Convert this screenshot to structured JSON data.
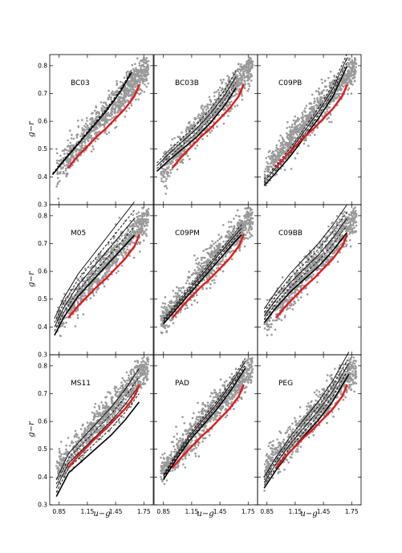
{
  "figure": {
    "xlabel": "u−g",
    "ylabel": "g−r"
  },
  "chart_data": {
    "type": "scatter",
    "grid": "3x3",
    "xlim": [
      0.75,
      1.85
    ],
    "ylim": [
      0.3,
      0.84
    ],
    "x_ticks": [
      0.85,
      1.15,
      1.45,
      1.75
    ],
    "x_tick_labels": [
      "0.85",
      "1.15",
      "1.45",
      "1.75"
    ],
    "y_ticks": [
      0.3,
      0.4,
      0.5,
      0.6,
      0.7,
      0.8
    ],
    "y_tick_labels": [
      "0.3",
      "0.4",
      "0.5",
      "0.6",
      "0.7",
      "0.8"
    ],
    "grid_lines": false,
    "colors": {
      "points": "#999999",
      "observed_track": "#e31a1c",
      "models": "#000000"
    },
    "observed_track": {
      "x": [
        0.95,
        1.05,
        1.15,
        1.25,
        1.35,
        1.45,
        1.55,
        1.65,
        1.7
      ],
      "y": [
        0.435,
        0.475,
        0.51,
        0.545,
        0.575,
        0.61,
        0.645,
        0.69,
        0.73
      ]
    },
    "panels": [
      {
        "label": "BC03",
        "model_x": [
          0.78,
          0.9,
          1.05,
          1.2,
          1.35,
          1.5,
          1.62
        ],
        "model_y": [
          0.41,
          0.46,
          0.52,
          0.58,
          0.64,
          0.71,
          0.78
        ],
        "spread": 0.008,
        "lines": 2
      },
      {
        "label": "BC03B",
        "model_x": [
          0.78,
          0.9,
          1.05,
          1.2,
          1.35,
          1.5,
          1.62
        ],
        "model_y": [
          0.435,
          0.475,
          0.52,
          0.565,
          0.62,
          0.685,
          0.75
        ],
        "spread": 0.02,
        "lines": 4
      },
      {
        "label": "C09PB",
        "model_x": [
          0.82,
          0.95,
          1.1,
          1.25,
          1.4,
          1.55,
          1.7
        ],
        "model_y": [
          0.38,
          0.43,
          0.49,
          0.56,
          0.63,
          0.71,
          0.82
        ],
        "spread": 0.015,
        "lines": 4
      },
      {
        "label": "M05",
        "model_x": [
          0.8,
          0.9,
          1.05,
          1.2,
          1.35,
          1.5,
          1.65
        ],
        "model_y": [
          0.4,
          0.47,
          0.55,
          0.61,
          0.67,
          0.73,
          0.79
        ],
        "spread": 0.03,
        "lines": 5
      },
      {
        "label": "C09PM",
        "model_x": [
          0.85,
          1.0,
          1.15,
          1.3,
          1.45,
          1.6,
          1.68
        ],
        "model_y": [
          0.42,
          0.48,
          0.54,
          0.6,
          0.66,
          0.72,
          0.75
        ],
        "spread": 0.012,
        "lines": 4
      },
      {
        "label": "C09BB",
        "model_x": [
          0.82,
          0.95,
          1.1,
          1.25,
          1.4,
          1.55,
          1.7
        ],
        "model_y": [
          0.44,
          0.5,
          0.56,
          0.61,
          0.66,
          0.72,
          0.79
        ],
        "spread": 0.025,
        "lines": 5
      },
      {
        "label": "MS11",
        "model_x": [
          0.82,
          0.95,
          1.1,
          1.25,
          1.4,
          1.55,
          1.7
        ],
        "model_y": [
          0.36,
          0.45,
          0.5,
          0.55,
          0.6,
          0.66,
          0.73
        ],
        "spread": 0.03,
        "lines": 5
      },
      {
        "label": "PAD",
        "model_x": [
          0.85,
          0.98,
          1.12,
          1.27,
          1.42,
          1.57,
          1.72
        ],
        "model_y": [
          0.4,
          0.47,
          0.54,
          0.6,
          0.66,
          0.73,
          0.81
        ],
        "spread": 0.012,
        "lines": 4
      },
      {
        "label": "PEG",
        "model_x": [
          0.82,
          0.95,
          1.1,
          1.25,
          1.4,
          1.55,
          1.72
        ],
        "model_y": [
          0.38,
          0.45,
          0.52,
          0.58,
          0.64,
          0.71,
          0.81
        ],
        "spread": 0.02,
        "lines": 5
      }
    ]
  }
}
